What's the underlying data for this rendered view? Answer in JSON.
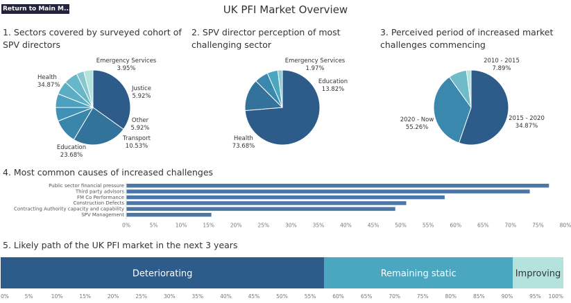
{
  "header": {
    "back_button_label": "Return to Main M...",
    "title": "UK PFI Market Overview"
  },
  "colors": {
    "navy": "#23233f",
    "dark_blue": "#2e5c8a",
    "mid_blue": "#3a88ad",
    "teal": "#4aa7bf",
    "light_teal": "#79c4cc",
    "pale_teal": "#b3e3dc"
  },
  "chart_data": [
    {
      "id": "sectors",
      "type": "pie",
      "title": "1. Sectors covered by surveyed cohort of SPV directors",
      "slices": [
        {
          "name": "Health",
          "value": 34.87,
          "label": "34.87%",
          "color": "#2e5c8a"
        },
        {
          "name": "Education",
          "value": 23.68,
          "label": "23.68%",
          "color": "#32729b"
        },
        {
          "name": "Transport",
          "value": 10.53,
          "label": "10.53%",
          "color": "#3a86ab"
        },
        {
          "name": "",
          "value": 5.92,
          "color": "#3f92b5"
        },
        {
          "name": "Other",
          "value": 5.92,
          "label": "5.92%",
          "color": "#4aa0bd"
        },
        {
          "name": "",
          "value": 5.92,
          "color": "#5aadc3"
        },
        {
          "name": "Justice",
          "value": 5.92,
          "label": "5.92%",
          "color": "#68b7c8"
        },
        {
          "name": "",
          "value": 3.29,
          "color": "#86c7cf"
        },
        {
          "name": "Emergency Services",
          "value": 3.95,
          "label": "3.95%",
          "color": "#b3e3dc"
        }
      ]
    },
    {
      "id": "challenging",
      "type": "pie",
      "title": "2. SPV director perception of most challenging sector",
      "slices": [
        {
          "name": "Health",
          "value": 73.68,
          "label": "73.68%",
          "color": "#2e5c8a"
        },
        {
          "name": "Education",
          "value": 13.82,
          "label": "13.82%",
          "color": "#32729b"
        },
        {
          "name": "",
          "value": 5.92,
          "color": "#3a88ad"
        },
        {
          "name": "",
          "value": 4.61,
          "color": "#4aa7bf"
        },
        {
          "name": "Emergency Services",
          "value": 1.97,
          "label": "1.97%",
          "color": "#8fcbd2"
        }
      ]
    },
    {
      "id": "period",
      "type": "pie",
      "title": "3. Perceived period of increased market challenges commencing",
      "slices": [
        {
          "name": "2020 - Now",
          "value": 55.26,
          "label": "55.26%",
          "color": "#2e5c8a"
        },
        {
          "name": "2015 - 2020",
          "value": 34.87,
          "label": "34.87%",
          "color": "#3a88ad"
        },
        {
          "name": "2010 - 2015",
          "value": 7.89,
          "label": "7.89%",
          "color": "#6fbcc8"
        },
        {
          "name": "",
          "value": 1.98,
          "color": "#b3e3dc"
        }
      ]
    },
    {
      "id": "causes",
      "type": "bar",
      "orientation": "horizontal",
      "title": "4. Most common causes of increased challenges",
      "categories": [
        "Public sector financial pressure",
        "Third party advisors",
        "FM Co Performance",
        "Construction Defects",
        "Contracting Authority capacity and capability",
        "SPV Management"
      ],
      "values": [
        77,
        73.5,
        58,
        51,
        49,
        15.5
      ],
      "xlim": [
        0,
        80
      ],
      "ticks": [
        "0%",
        "5%",
        "10%",
        "15%",
        "20%",
        "25%",
        "30%",
        "35%",
        "40%",
        "45%",
        "50%",
        "55%",
        "60%",
        "65%",
        "70%",
        "75%",
        "80%"
      ],
      "color": "#4a76a8"
    },
    {
      "id": "path",
      "type": "bar",
      "orientation": "stacked-100",
      "title": "5. Likely path of the UK PFI market  in the next 3 years",
      "segments": [
        {
          "name": "Deteriorating",
          "value": 57.5,
          "color": "#2e5c8a"
        },
        {
          "name": "Remaining static",
          "value": 33.5,
          "color": "#4aa7bf"
        },
        {
          "name": "Improving",
          "value": 9.0,
          "color": "#b3e3dc"
        }
      ],
      "ticks": [
        "0%",
        "5%",
        "10%",
        "15%",
        "20%",
        "25%",
        "30%",
        "35%",
        "40%",
        "45%",
        "50%",
        "55%",
        "60%",
        "65%",
        "70%",
        "75%",
        "80%",
        "85%",
        "90%",
        "95%",
        "100%"
      ]
    }
  ]
}
